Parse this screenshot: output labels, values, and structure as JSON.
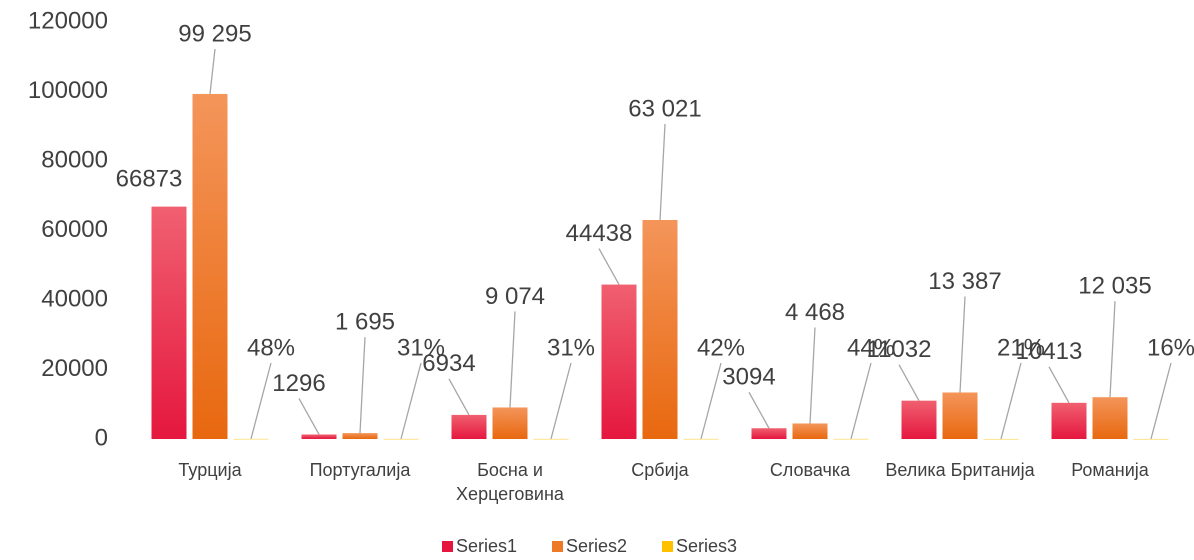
{
  "chart_data": {
    "type": "bar",
    "categories": [
      "Турција",
      "Португалија",
      "Босна и Херцеговина",
      "Србија",
      "Словачка",
      "Велика Британија",
      "Романија"
    ],
    "series": [
      {
        "name": "Series1",
        "color": "#e5173f",
        "values": [
          66873,
          1296,
          6934,
          44438,
          3094,
          11032,
          10413
        ]
      },
      {
        "name": "Series2",
        "color": "#ee7a27",
        "values": [
          99295,
          1695,
          9074,
          63021,
          4468,
          13387,
          12035
        ],
        "value_labels": [
          "99 295",
          "1 695",
          "9 074",
          "63 021",
          "4 468",
          "13 387",
          "12 035"
        ]
      },
      {
        "name": "Series3",
        "color": "#ffc000",
        "values": [
          48,
          31,
          31,
          42,
          44,
          21,
          16
        ],
        "value_labels": [
          "48%",
          "31%",
          "31%",
          "42%",
          "44%",
          "21%",
          "16%"
        ]
      }
    ],
    "ylim": [
      0,
      120000
    ],
    "yticks": [
      0,
      20000,
      40000,
      60000,
      80000,
      100000,
      120000
    ],
    "grid": false,
    "legend": "bottom"
  }
}
